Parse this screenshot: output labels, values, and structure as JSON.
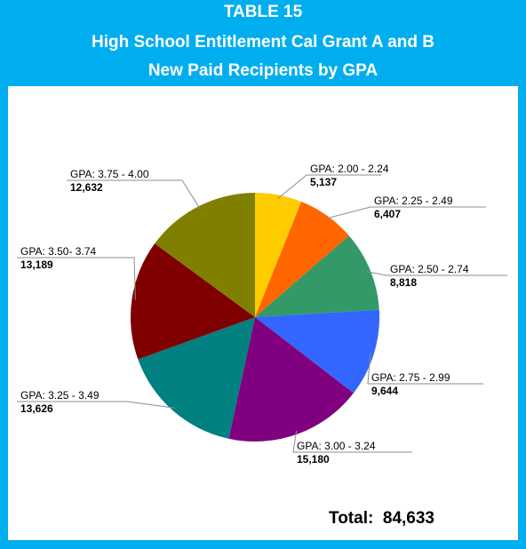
{
  "header": {
    "line1": "TABLE 15",
    "line2": "High School Entitlement Cal Grant A and B",
    "line3": "New Paid Recipients by GPA"
  },
  "total": {
    "label": "Total:",
    "value": "84,633"
  },
  "colors": {
    "frame": "#00aeef",
    "panel": "#ffffff"
  },
  "chart_data": {
    "type": "pie",
    "title": "",
    "slices": [
      {
        "label": "GPA: 2.00 - 2.24",
        "value": 5137,
        "value_label": "5,137",
        "color": "#ffcc00"
      },
      {
        "label": "GPA: 2.25 - 2.49",
        "value": 6407,
        "value_label": "6,407",
        "color": "#ff6600"
      },
      {
        "label": "GPA: 2.50 - 2.74",
        "value": 8818,
        "value_label": "8,818",
        "color": "#339966"
      },
      {
        "label": "GPA: 2.75 - 2.99",
        "value": 9644,
        "value_label": "9,644",
        "color": "#3366ff"
      },
      {
        "label": "GPA: 3.00 - 3.24",
        "value": 15180,
        "value_label": "15,180",
        "color": "#800080"
      },
      {
        "label": "GPA: 3.25 - 3.49",
        "value": 13626,
        "value_label": "13,626",
        "color": "#008080"
      },
      {
        "label": "GPA: 3.50- 3.74",
        "value": 13189,
        "value_label": "13,189",
        "color": "#800000"
      },
      {
        "label": "GPA: 3.75 - 4.00",
        "value": 12632,
        "value_label": "12,632",
        "color": "#808000"
      }
    ],
    "start_angle": "12 o'clock",
    "direction": "clockwise",
    "legend": "none"
  }
}
